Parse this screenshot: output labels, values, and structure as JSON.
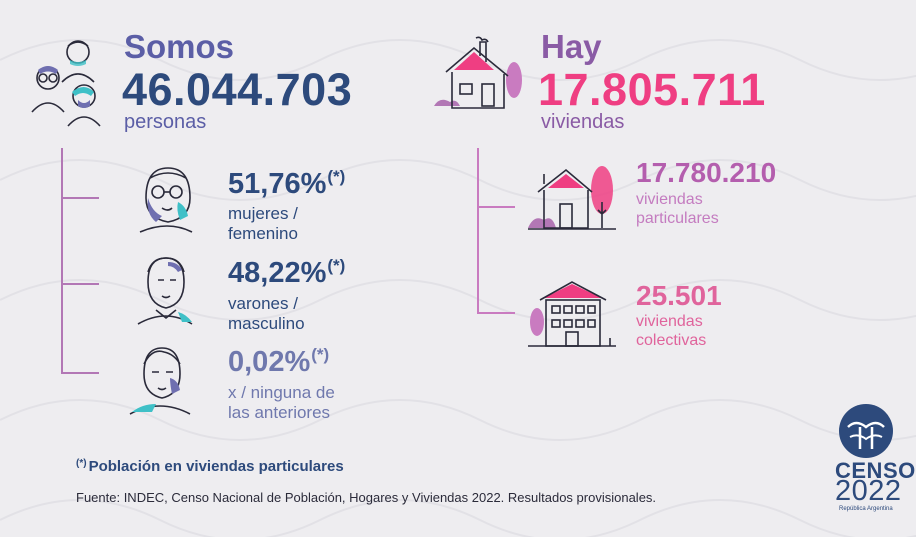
{
  "people": {
    "heading": "Somos",
    "total": "46.044.703",
    "unit": "personas",
    "groups": [
      {
        "percent": "51,76%",
        "mark": "(*)",
        "line1": "mujeres /",
        "line2": "femenino"
      },
      {
        "percent": "48,22%",
        "mark": "(*)",
        "line1": "varones /",
        "line2": "masculino"
      },
      {
        "percent": "0,02%",
        "mark": "(*)",
        "line1": "x / ninguna de",
        "line2": "las anteriores"
      }
    ]
  },
  "housing": {
    "heading": "Hay",
    "total": "17.805.711",
    "unit": "viviendas",
    "groups": [
      {
        "value": "17.780.210",
        "line1": "viviendas",
        "line2": "particulares"
      },
      {
        "value": "25.501",
        "line1": "viviendas",
        "line2": "colectivas"
      }
    ]
  },
  "footnote": {
    "mark": "(*)",
    "text": "Población en viviendas particulares"
  },
  "source": "Fuente: INDEC, Censo Nacional de Población, Hogares y Viviendas 2022. Resultados provisionales.",
  "logo": {
    "name": "CENSO",
    "year": "2022",
    "country": "República Argentina"
  },
  "colors": {
    "navy": "#2d4a7c",
    "violet": "#5b5ea6",
    "pink": "#ef3e82",
    "purple": "#b45eae",
    "lilac": "#c47cc0",
    "teal": "#3fc0c7"
  },
  "icons": [
    "people-group-icon",
    "house-icon",
    "woman-face-icon",
    "man-face-icon",
    "person-face-icon",
    "private-house-icon",
    "collective-housing-icon",
    "censo-logo-icon"
  ]
}
